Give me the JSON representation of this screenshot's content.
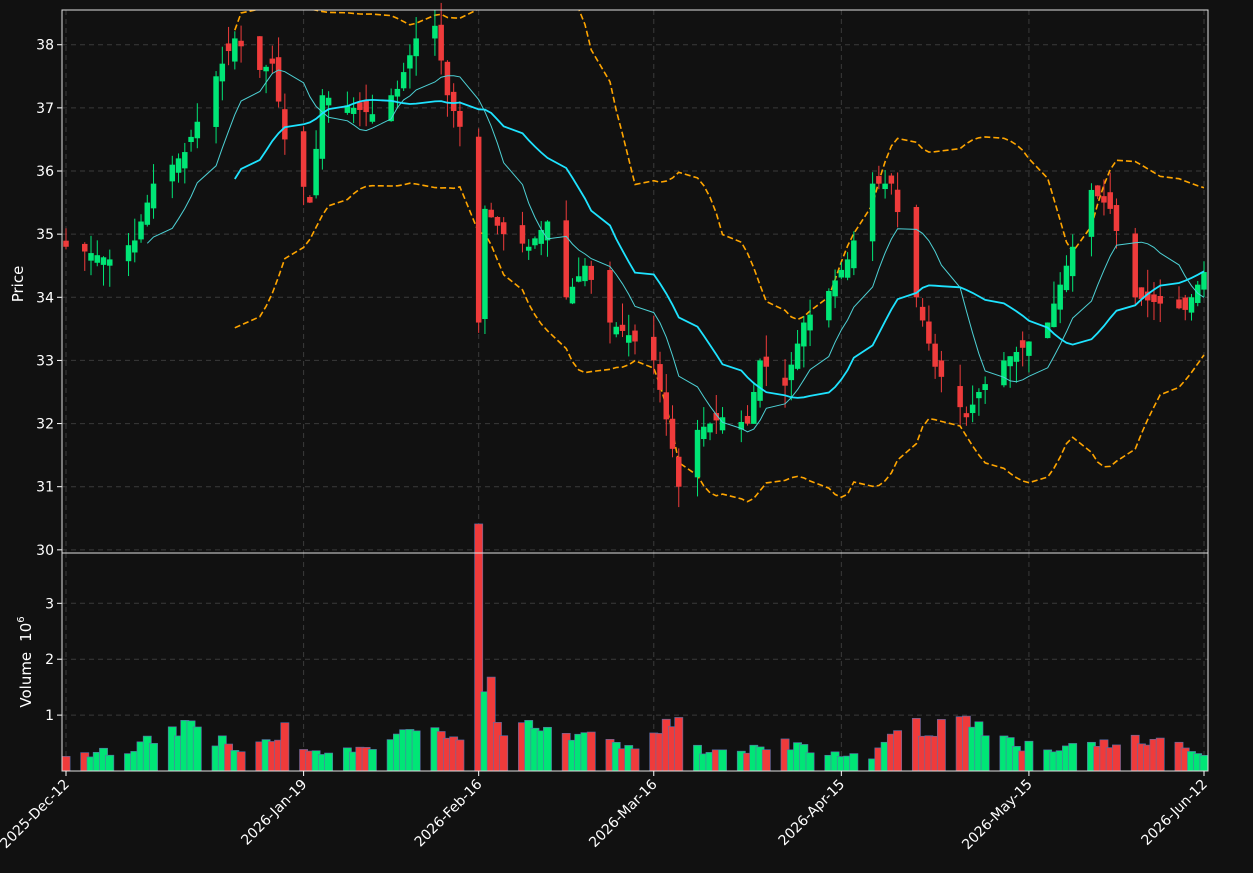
{
  "colors": {
    "background": "#111111",
    "up": "#00e676",
    "down": "#ef3b3b",
    "ma_fast": "#4dd0d4",
    "ma_slow": "#1ee3ff",
    "band": "#ffa500"
  },
  "chart_data": [
    {
      "type": "candlestick",
      "ylabel": "Price",
      "ylim": [
        29.95,
        38.55
      ],
      "yticks": [
        30,
        31,
        32,
        33,
        34,
        35,
        36,
        37,
        38
      ],
      "grid": true,
      "x_range": [
        "2025-12-12",
        "2026-06-12"
      ],
      "xticks": [
        {
          "date": "2025-12-12",
          "label": "2025-Dec-12"
        },
        {
          "date": "2026-01-19",
          "label": "2026-Jan-19"
        },
        {
          "date": "2026-02-16",
          "label": "2026-Feb-16"
        },
        {
          "date": "2026-03-16",
          "label": "2026-Mar-16"
        },
        {
          "date": "2026-04-15",
          "label": "2026-Apr-15"
        },
        {
          "date": "2026-05-15",
          "label": "2026-May-15"
        },
        {
          "date": "2026-06-12",
          "label": "2026-Jun-12"
        }
      ],
      "close_anchors": [
        [
          "2025-12-12",
          34.8
        ],
        [
          "2025-12-16",
          34.7
        ],
        [
          "2025-12-19",
          34.6
        ],
        [
          "2025-12-23",
          34.9
        ],
        [
          "2025-12-26",
          35.8
        ],
        [
          "2025-12-31",
          36.3
        ],
        [
          "2026-01-05",
          37.5
        ],
        [
          "2026-01-08",
          38.1
        ],
        [
          "2026-01-12",
          37.6
        ],
        [
          "2026-01-14",
          37.7
        ],
        [
          "2026-01-16",
          36.5
        ],
        [
          "2026-01-20",
          35.5
        ],
        [
          "2026-01-22",
          37.2
        ],
        [
          "2026-01-27",
          37.0
        ],
        [
          "2026-01-30",
          36.9
        ],
        [
          "2026-02-03",
          37.3
        ],
        [
          "2026-02-06",
          38.1
        ],
        [
          "2026-02-09",
          38.3
        ],
        [
          "2026-02-11",
          37.2
        ],
        [
          "2026-02-13",
          36.7
        ],
        [
          "2026-02-16",
          33.6
        ],
        [
          "2026-02-17",
          35.4
        ],
        [
          "2026-02-20",
          35.0
        ],
        [
          "2026-02-24",
          34.8
        ],
        [
          "2026-02-27",
          35.2
        ],
        [
          "2026-03-02",
          34.0
        ],
        [
          "2026-03-05",
          34.5
        ],
        [
          "2026-03-09",
          33.6
        ],
        [
          "2026-03-12",
          33.4
        ],
        [
          "2026-03-16",
          33.0
        ],
        [
          "2026-03-19",
          31.6
        ],
        [
          "2026-03-20",
          31.0
        ],
        [
          "2026-03-23",
          31.9
        ],
        [
          "2026-03-27",
          32.1
        ],
        [
          "2026-03-31",
          32.0
        ],
        [
          "2026-04-02",
          33.0
        ],
        [
          "2026-04-06",
          32.6
        ],
        [
          "2026-04-09",
          33.6
        ],
        [
          "2026-04-13",
          34.1
        ],
        [
          "2026-04-16",
          34.6
        ],
        [
          "2026-04-20",
          35.8
        ],
        [
          "2026-04-23",
          35.8
        ],
        [
          "2026-04-27",
          34.0
        ],
        [
          "2026-04-30",
          32.9
        ],
        [
          "2026-05-05",
          32.1
        ],
        [
          "2026-05-07",
          32.5
        ],
        [
          "2026-05-11",
          33.0
        ],
        [
          "2026-05-14",
          33.2
        ],
        [
          "2026-05-18",
          33.6
        ],
        [
          "2026-05-21",
          34.5
        ],
        [
          "2026-05-25",
          35.7
        ],
        [
          "2026-05-28",
          35.4
        ],
        [
          "2026-06-01",
          34.0
        ],
        [
          "2026-06-05",
          33.9
        ],
        [
          "2026-06-09",
          33.8
        ],
        [
          "2026-06-12",
          34.4
        ]
      ]
    },
    {
      "type": "bar",
      "ylabel": "Volume",
      "ylabel_exponent": "10",
      "ylabel_exponent_power": "6",
      "ylim": [
        0,
        3.9
      ],
      "yticks": [
        1,
        2,
        3
      ],
      "volume_anchors": [
        [
          "2025-12-12",
          0.3
        ],
        [
          "2025-12-22",
          0.35
        ],
        [
          "2026-01-01",
          0.9
        ],
        [
          "2026-01-05",
          0.55
        ],
        [
          "2026-01-10",
          0.35
        ],
        [
          "2026-01-16",
          0.8
        ],
        [
          "2026-01-20",
          0.35
        ],
        [
          "2026-02-03",
          0.55
        ],
        [
          "2026-02-06",
          0.75
        ],
        [
          "2026-02-13",
          0.5
        ],
        [
          "2026-02-16",
          3.55
        ],
        [
          "2026-02-17",
          1.7
        ],
        [
          "2026-02-20",
          0.7
        ],
        [
          "2026-02-27",
          0.8
        ],
        [
          "2026-03-12",
          0.4
        ],
        [
          "2026-03-19",
          1.0
        ],
        [
          "2026-03-20",
          0.85
        ],
        [
          "2026-03-24",
          0.35
        ],
        [
          "2026-04-07",
          0.5
        ],
        [
          "2026-04-20",
          0.2
        ],
        [
          "2026-04-24",
          0.85
        ],
        [
          "2026-05-04",
          0.8
        ],
        [
          "2026-05-07",
          0.85
        ],
        [
          "2026-05-14",
          0.45
        ],
        [
          "2026-05-22",
          0.45
        ],
        [
          "2026-05-28",
          0.5
        ],
        [
          "2026-06-04",
          0.55
        ],
        [
          "2026-06-12",
          0.35
        ]
      ]
    }
  ]
}
